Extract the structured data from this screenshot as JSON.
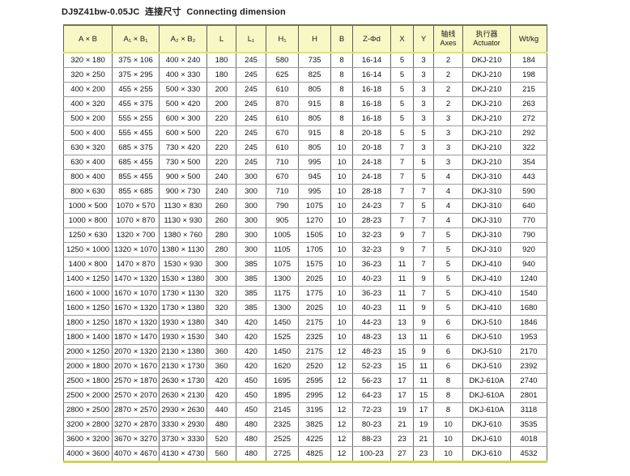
{
  "title": "DJ9Z41bw-0.05JC  连接尺寸  Connecting dimension",
  "colors": {
    "header_bg": "#f8f8c6",
    "header_top_border": "#73734a",
    "header_underline": "#e2e25e",
    "table_bottom_border": "#ccd84b",
    "grid_line": "#9a9a9a",
    "column_line": "#6b6b6b",
    "text": "#1a1a1a"
  },
  "table": {
    "columns": [
      {
        "key": "axb",
        "label": "A × B"
      },
      {
        "key": "a1b1",
        "label": "A₁ × B₁"
      },
      {
        "key": "a2b2",
        "label": "A₂ × B₂"
      },
      {
        "key": "l",
        "label": "L"
      },
      {
        "key": "l1",
        "label": "L₁"
      },
      {
        "key": "h1",
        "label": "H₁"
      },
      {
        "key": "h",
        "label": "H"
      },
      {
        "key": "b",
        "label": "B"
      },
      {
        "key": "zphid",
        "label": "Z-Φd"
      },
      {
        "key": "x",
        "label": "X"
      },
      {
        "key": "y",
        "label": "Y"
      },
      {
        "key": "axes",
        "zh": "轴线",
        "en": "Axes"
      },
      {
        "key": "actuator",
        "zh": "执行器",
        "en": "Actuator"
      },
      {
        "key": "wt",
        "label": "Wt/kg"
      }
    ],
    "rows": [
      [
        "320 × 180",
        "375 × 106",
        "400 × 240",
        "180",
        "245",
        "580",
        "735",
        "8",
        "16-14",
        "5",
        "3",
        "2",
        "DKJ-210",
        "184"
      ],
      [
        "320 × 250",
        "375 × 295",
        "400 × 330",
        "180",
        "245",
        "625",
        "825",
        "8",
        "16-14",
        "5",
        "3",
        "2",
        "DKJ-210",
        "198"
      ],
      [
        "400 × 200",
        "455 × 255",
        "500 × 330",
        "200",
        "245",
        "610",
        "805",
        "8",
        "16-18",
        "5",
        "3",
        "2",
        "DKJ-210",
        "215"
      ],
      [
        "400 × 320",
        "455 × 375",
        "500 × 420",
        "200",
        "245",
        "870",
        "915",
        "8",
        "16-18",
        "5",
        "3",
        "2",
        "DKJ-210",
        "263"
      ],
      [
        "500 × 200",
        "555 × 255",
        "600 × 300",
        "220",
        "245",
        "610",
        "805",
        "8",
        "16-18",
        "5",
        "3",
        "3",
        "DKJ-210",
        "272"
      ],
      [
        "500 × 400",
        "555 × 455",
        "600 × 500",
        "220",
        "245",
        "670",
        "915",
        "8",
        "20-18",
        "5",
        "5",
        "3",
        "DKJ-210",
        "292"
      ],
      [
        "630 × 320",
        "685 × 375",
        "730 × 420",
        "220",
        "245",
        "610",
        "805",
        "10",
        "20-18",
        "7",
        "3",
        "3",
        "DKJ-210",
        "322"
      ],
      [
        "630 × 400",
        "685 × 455",
        "730 × 500",
        "220",
        "245",
        "710",
        "995",
        "10",
        "24-18",
        "7",
        "5",
        "3",
        "DKJ-210",
        "354"
      ],
      [
        "800 × 400",
        "855 × 455",
        "900 × 500",
        "240",
        "300",
        "670",
        "945",
        "10",
        "24-18",
        "7",
        "5",
        "4",
        "DKJ-310",
        "443"
      ],
      [
        "800 × 630",
        "855 × 685",
        "900 × 730",
        "240",
        "300",
        "710",
        "995",
        "10",
        "28-18",
        "7",
        "7",
        "4",
        "DKJ-310",
        "590"
      ],
      [
        "1000 × 500",
        "1070 × 570",
        "1130 × 830",
        "260",
        "300",
        "790",
        "1075",
        "10",
        "24-23",
        "7",
        "5",
        "4",
        "DKJ-310",
        "640"
      ],
      [
        "1000 × 800",
        "1070 × 870",
        "1130 × 930",
        "260",
        "300",
        "905",
        "1270",
        "10",
        "28-23",
        "7",
        "7",
        "4",
        "DKJ-310",
        "770"
      ],
      [
        "1250 × 630",
        "1320 × 700",
        "1380 × 760",
        "280",
        "300",
        "1005",
        "1505",
        "10",
        "32-23",
        "9",
        "7",
        "5",
        "DKJ-310",
        "790"
      ],
      [
        "1250 × 1000",
        "1320 × 1070",
        "1380 × 1130",
        "280",
        "300",
        "1105",
        "1705",
        "10",
        "32-23",
        "9",
        "7",
        "5",
        "DKJ-310",
        "920"
      ],
      [
        "1400 × 800",
        "1470 × 870",
        "1530 × 930",
        "300",
        "385",
        "1075",
        "1575",
        "10",
        "36-23",
        "11",
        "7",
        "5",
        "DKJ-410",
        "940"
      ],
      [
        "1400 × 1250",
        "1470 × 1320",
        "1530 × 1380",
        "300",
        "385",
        "1300",
        "2025",
        "10",
        "40-23",
        "11",
        "9",
        "5",
        "DKJ-410",
        "1240"
      ],
      [
        "1600 × 1000",
        "1670 × 1070",
        "1730 × 1130",
        "320",
        "385",
        "1175",
        "1775",
        "10",
        "36-23",
        "11",
        "7",
        "5",
        "DKJ-410",
        "1540"
      ],
      [
        "1600 × 1250",
        "1670 × 1320",
        "1730 × 1380",
        "320",
        "385",
        "1300",
        "2025",
        "10",
        "40-23",
        "11",
        "9",
        "5",
        "DKJ-410",
        "1680"
      ],
      [
        "1800 × 1250",
        "1870 × 1320",
        "1930 × 1380",
        "340",
        "420",
        "1450",
        "2175",
        "10",
        "44-23",
        "13",
        "9",
        "6",
        "DKJ-510",
        "1846"
      ],
      [
        "1800 × 1400",
        "1870 × 1470",
        "1930 × 1530",
        "340",
        "420",
        "1525",
        "2325",
        "10",
        "48-23",
        "13",
        "11",
        "6",
        "DKJ-510",
        "1953"
      ],
      [
        "2000 × 1250",
        "2070 × 1320",
        "2130 × 1380",
        "360",
        "420",
        "1450",
        "2175",
        "12",
        "48-23",
        "15",
        "9",
        "6",
        "DKJ-510",
        "2170"
      ],
      [
        "2000 × 1800",
        "2070 × 1670",
        "2130 × 1730",
        "360",
        "420",
        "1620",
        "2520",
        "12",
        "52-23",
        "15",
        "11",
        "6",
        "DKJ-510",
        "2392"
      ],
      [
        "2500 × 1800",
        "2570 × 1870",
        "2630 × 1730",
        "420",
        "450",
        "1695",
        "2595",
        "12",
        "56-23",
        "17",
        "11",
        "8",
        "DKJ-610A",
        "2740"
      ],
      [
        "2500 × 2000",
        "2570 × 2070",
        "2630 × 2130",
        "420",
        "450",
        "1895",
        "2995",
        "12",
        "64-23",
        "17",
        "15",
        "8",
        "DKJ-610A",
        "2801"
      ],
      [
        "2800 × 2500",
        "2870 × 2570",
        "2930 × 2630",
        "440",
        "450",
        "2145",
        "3195",
        "12",
        "72-23",
        "19",
        "17",
        "8",
        "DKJ-610A",
        "3118"
      ],
      [
        "3200 × 2800",
        "3270 × 2870",
        "3330 × 2930",
        "480",
        "480",
        "2325",
        "3825",
        "12",
        "80-23",
        "21",
        "19",
        "10",
        "DKJ-610",
        "3535"
      ],
      [
        "3600 × 3200",
        "3670 × 3270",
        "3730 × 3330",
        "520",
        "480",
        "2525",
        "4225",
        "12",
        "88-23",
        "23",
        "21",
        "10",
        "DKJ-610",
        "4018"
      ],
      [
        "4000 × 3600",
        "4070 × 4670",
        "4130 × 4730",
        "560",
        "480",
        "2725",
        "4825",
        "12",
        "100-23",
        "27",
        "23",
        "10",
        "DKJ-610",
        "4532"
      ]
    ]
  }
}
